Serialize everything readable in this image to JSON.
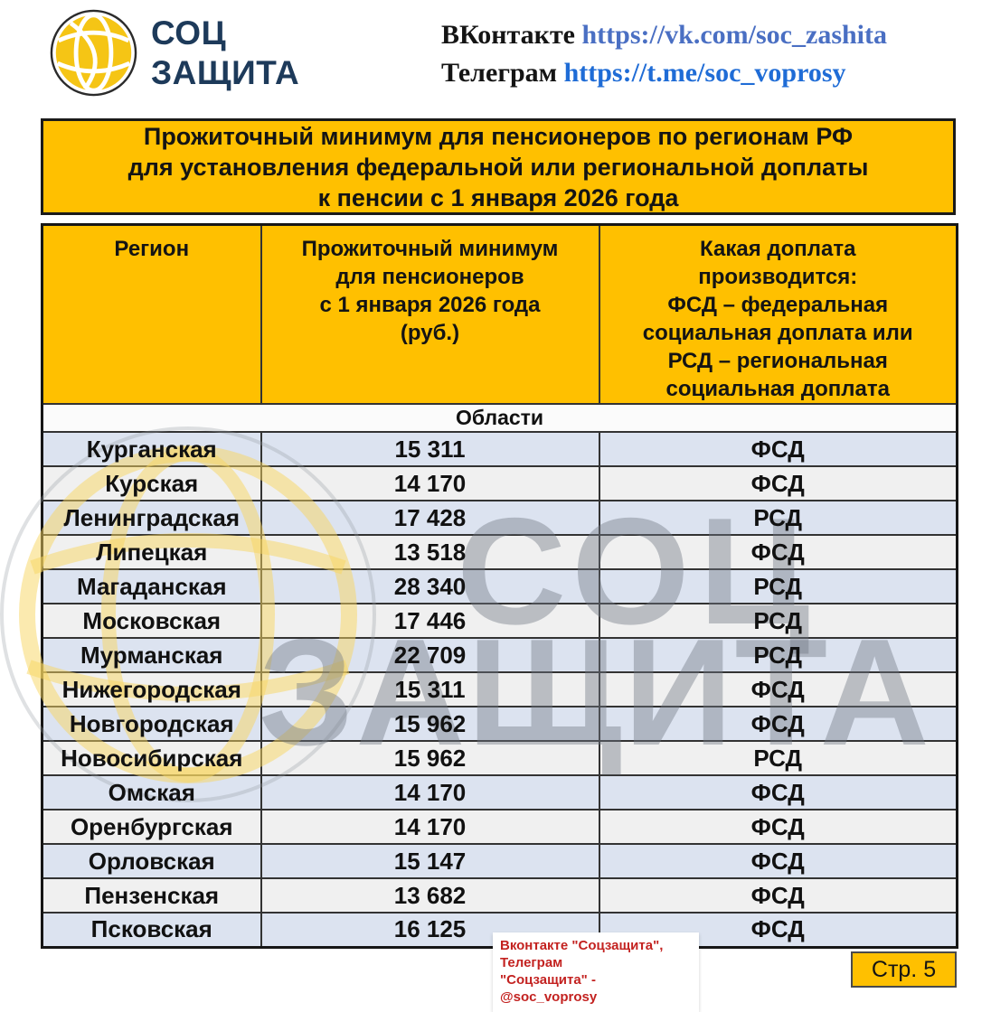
{
  "logo": {
    "line1": "СОЦ",
    "line2": "ЗАЩИТА"
  },
  "social": {
    "vk_label": "ВКонтакте",
    "vk_url": "https://vk.com/soc_zashita",
    "tg_label": "Телеграм",
    "tg_url": "https://t.me/soc_voprosy"
  },
  "title": {
    "line1": "Прожиточный минимум для пенсионеров по регионам РФ",
    "line2": "для установления федеральной или региональной доплаты",
    "line3": "к пенсии с 1 января 2026 года"
  },
  "table": {
    "headers": {
      "region": "Регион",
      "minimum": "Прожиточный минимум\nдля пенсионеров\nс 1 января 2026 года\n(руб.)",
      "supplement": "Какая доплата\nпроизводится:\nФСД – федеральная\nсоциальная доплата или\nРСД – региональная\nсоциальная доплата"
    },
    "section": "Области",
    "rows": [
      {
        "region": "Курганская",
        "value": "15 311",
        "type": "ФСД"
      },
      {
        "region": "Курская",
        "value": "14 170",
        "type": "ФСД"
      },
      {
        "region": "Ленинградская",
        "value": "17 428",
        "type": "РСД"
      },
      {
        "region": "Липецкая",
        "value": "13 518",
        "type": "ФСД"
      },
      {
        "region": "Магаданская",
        "value": "28 340",
        "type": "РСД"
      },
      {
        "region": "Московская",
        "value": "17 446",
        "type": "РСД"
      },
      {
        "region": "Мурманская",
        "value": "22 709",
        "type": "РСД"
      },
      {
        "region": "Нижегородская",
        "value": "15 311",
        "type": "ФСД"
      },
      {
        "region": "Новгородская",
        "value": "15 962",
        "type": "ФСД"
      },
      {
        "region": "Новосибирская",
        "value": "15 962",
        "type": "РСД"
      },
      {
        "region": "Омская",
        "value": "14 170",
        "type": "ФСД"
      },
      {
        "region": "Оренбургская",
        "value": "14 170",
        "type": "ФСД"
      },
      {
        "region": "Орловская",
        "value": "15 147",
        "type": "ФСД"
      },
      {
        "region": "Пензенская",
        "value": "13 682",
        "type": "ФСД"
      },
      {
        "region": "Псковская",
        "value": "16 125",
        "type": "ФСД"
      }
    ]
  },
  "watermark": {
    "line1": "СОЦ",
    "line2": "ЗАЩИТА"
  },
  "footer": {
    "note_line1": "Вконтакте \"Соцзащита\", Телеграм",
    "note_line2": "\"Соцзащита\" - @soc_voprosy",
    "page_label": "Стр. 5"
  },
  "colors": {
    "accent_gold": "#FFC000",
    "row_blue": "#DCE3F0",
    "row_gray": "#F0F0F0",
    "logo_navy": "#1d3a5a",
    "link_blue_vk": "#4a6fc3",
    "link_blue_tg": "#1f6cd6",
    "note_red": "#c32220"
  }
}
